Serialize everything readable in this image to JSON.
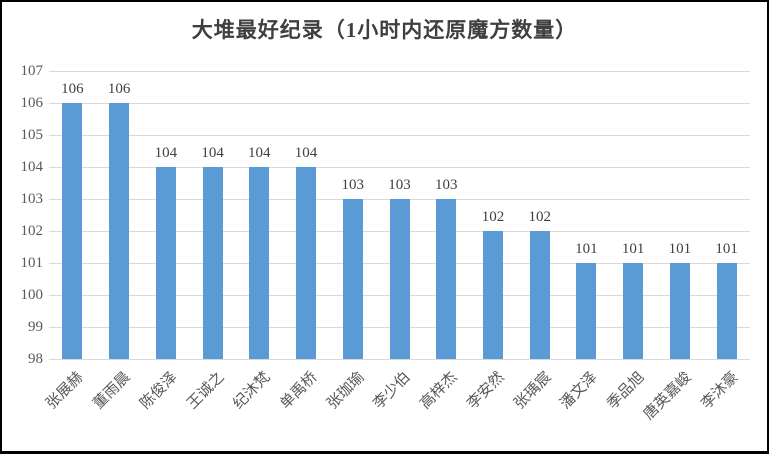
{
  "frame": {
    "background": "#FFFFFF",
    "border_color": "#000000"
  },
  "chart_data": {
    "type": "bar",
    "title": "大堆最好纪录（1小时内还原魔方数量）",
    "categories": [
      "张展赫",
      "董雨晨",
      "陈俊泽",
      "王诚之",
      "纪沐梵",
      "单禹桥",
      "张珈瑜",
      "李少伯",
      "高梓杰",
      "李安然",
      "张瑀宸",
      "潘文泽",
      "季品旭",
      "唐英嘉峻",
      "李沐豪"
    ],
    "values": [
      106,
      106,
      104,
      104,
      104,
      104,
      103,
      103,
      103,
      102,
      102,
      101,
      101,
      101,
      101
    ],
    "xlabel": "",
    "ylabel": "",
    "ylim": [
      98,
      107
    ],
    "ytick_step": 1,
    "yticks": [
      98,
      99,
      100,
      101,
      102,
      103,
      104,
      105,
      106,
      107
    ],
    "grid": true,
    "legend_position": "none",
    "data_labels": true,
    "bar_color": "#5B9BD5",
    "gridline_color": "#D9D9D9",
    "title_color": "#3F3F3F",
    "axis_label_color": "#595959",
    "value_label_color": "#404040"
  }
}
